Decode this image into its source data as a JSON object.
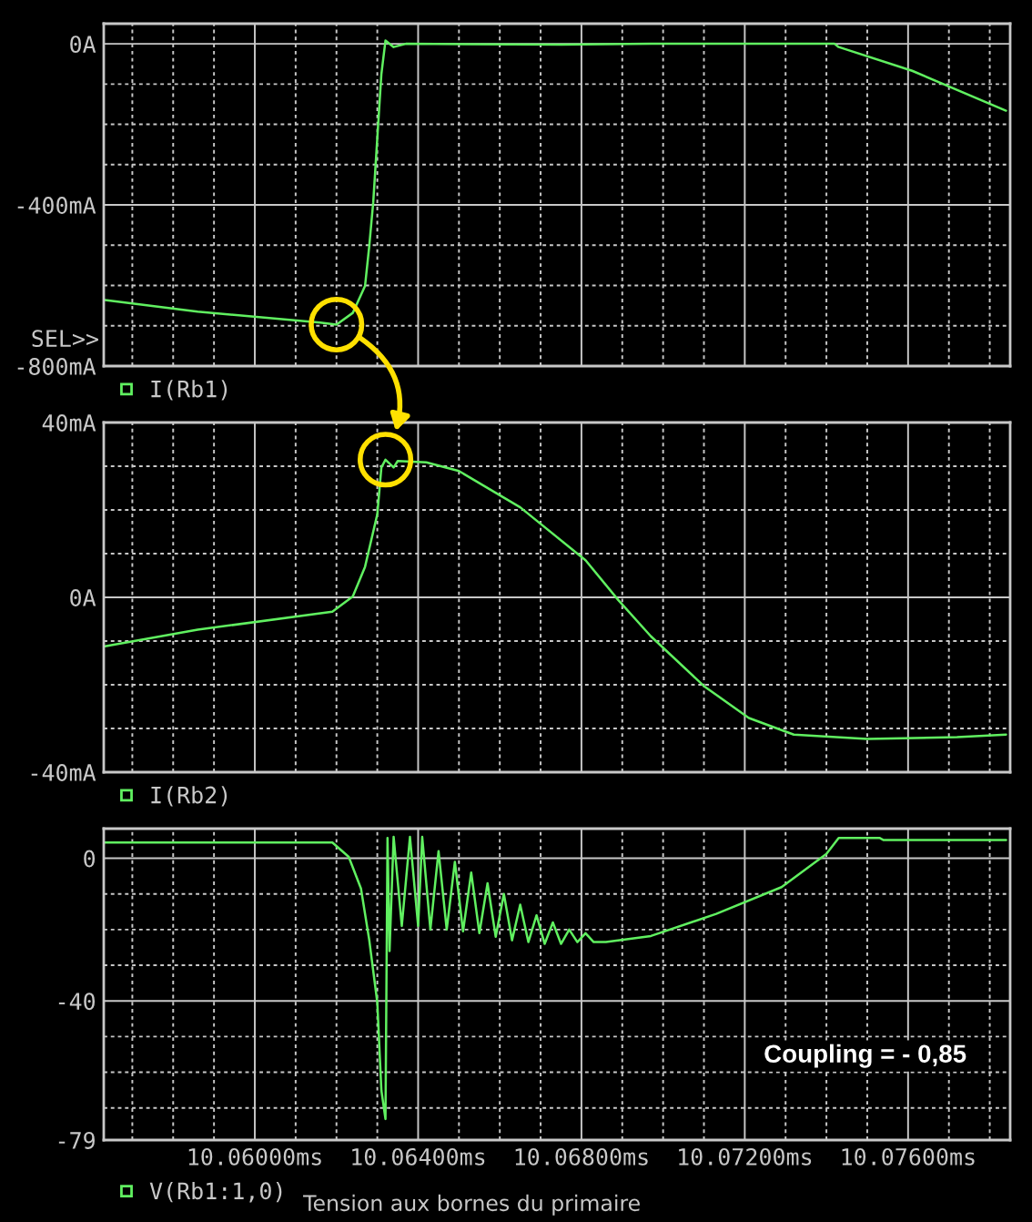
{
  "chart_data": [
    {
      "type": "line",
      "x": [
        10.05633,
        10.0586,
        10.0616,
        10.062,
        10.0624,
        10.0627,
        10.0628,
        10.0629,
        10.063,
        10.0631,
        10.0632,
        10.0634,
        10.0637,
        10.0675,
        10.0697,
        10.0742,
        10.0743,
        10.0761,
        10.0784
      ],
      "series": [
        {
          "name": "I(Rb1)",
          "color": "#60f060",
          "values": [
            -636,
            -665,
            -692,
            -697,
            -668,
            -601,
            -505,
            -394,
            -234,
            -75,
            8,
            -8,
            0,
            -2,
            0,
            0,
            -8,
            -67,
            -166
          ]
        }
      ],
      "xlim": [
        10.0563,
        10.0785
      ],
      "ylim": [
        -800,
        50
      ],
      "xticks": [
        {
          "value": 10.057,
          "label": null
        },
        {
          "value": 10.058,
          "label": null
        },
        {
          "value": 10.059,
          "label": null
        },
        10.06,
        {
          "value": 10.061,
          "label": null
        },
        {
          "value": 10.062,
          "label": null
        },
        {
          "value": 10.063,
          "label": null
        },
        10.064,
        {
          "value": 10.065,
          "label": null
        },
        {
          "value": 10.066,
          "label": null
        },
        {
          "value": 10.067,
          "label": null
        },
        10.068,
        {
          "value": 10.069,
          "label": null
        },
        {
          "value": 10.07,
          "label": null
        },
        {
          "value": 10.071,
          "label": null
        },
        10.072,
        {
          "value": 10.073,
          "label": null
        },
        {
          "value": 10.074,
          "label": null
        },
        {
          "value": 10.075,
          "label": null
        },
        10.076,
        {
          "value": 10.077,
          "label": null
        },
        {
          "value": 10.078,
          "label": null
        }
      ],
      "yticks": [
        {
          "value": 0,
          "label": "0A"
        },
        {
          "value": -100,
          "label": null
        },
        {
          "value": -200,
          "label": null
        },
        {
          "value": -300,
          "label": null
        },
        {
          "value": -400,
          "label": "-400mA"
        },
        {
          "value": -500,
          "label": null
        },
        {
          "value": -600,
          "label": null
        },
        {
          "value": -700,
          "label": null
        },
        {
          "value": -800,
          "label": "-800mA"
        }
      ],
      "tick_labels": "y",
      "grid": true,
      "legend": "bottom",
      "annotations": [
        "SEL>>"
      ]
    },
    {
      "type": "line",
      "x": [
        10.05633,
        10.0586,
        10.0619,
        10.0624,
        10.0627,
        10.063,
        10.0631,
        10.0632,
        10.0634,
        10.0635,
        10.0642,
        10.065,
        10.0665,
        10.0681,
        10.0689,
        10.0697,
        10.071,
        10.0721,
        10.0732,
        10.075,
        10.0772,
        10.0784
      ],
      "series": [
        {
          "name": "I(Rb2)",
          "color": "#60f060",
          "values": [
            -11.2,
            -7.4,
            -3.3,
            0.2,
            7,
            19,
            29.7,
            31.5,
            29.7,
            31.2,
            30.9,
            28.9,
            20.6,
            8.5,
            -0.6,
            -8.9,
            -20.3,
            -27.6,
            -31.4,
            -32.4,
            -32,
            -31.4
          ]
        }
      ],
      "xlim": [
        10.0563,
        10.0785
      ],
      "ylim": [
        -40,
        40
      ],
      "xticks": [
        {
          "value": 10.057,
          "label": null
        },
        {
          "value": 10.058,
          "label": null
        },
        {
          "value": 10.059,
          "label": null
        },
        10.06,
        {
          "value": 10.061,
          "label": null
        },
        {
          "value": 10.062,
          "label": null
        },
        {
          "value": 10.063,
          "label": null
        },
        10.064,
        {
          "value": 10.065,
          "label": null
        },
        {
          "value": 10.066,
          "label": null
        },
        {
          "value": 10.067,
          "label": null
        },
        10.068,
        {
          "value": 10.069,
          "label": null
        },
        {
          "value": 10.07,
          "label": null
        },
        {
          "value": 10.071,
          "label": null
        },
        10.072,
        {
          "value": 10.073,
          "label": null
        },
        {
          "value": 10.074,
          "label": null
        },
        {
          "value": 10.075,
          "label": null
        },
        10.076,
        {
          "value": 10.077,
          "label": null
        },
        {
          "value": 10.078,
          "label": null
        }
      ],
      "yticks": [
        {
          "value": 40,
          "label": "40mA"
        },
        {
          "value": 30,
          "label": null
        },
        {
          "value": 20,
          "label": null
        },
        {
          "value": 10,
          "label": null
        },
        {
          "value": 0,
          "label": "0A"
        },
        {
          "value": -10,
          "label": null
        },
        {
          "value": -20,
          "label": null
        },
        {
          "value": -30,
          "label": null
        },
        {
          "value": -40,
          "label": "-40mA"
        }
      ],
      "tick_labels": "y",
      "grid": true,
      "legend": "bottom"
    },
    {
      "type": "line",
      "x": [
        10.05633,
        10.0619,
        10.0623,
        10.0626,
        10.0628,
        10.063,
        10.0631,
        10.0632,
        10.06325,
        10.0633,
        10.0634,
        10.0636,
        10.0638,
        10.064,
        10.0641,
        10.0643,
        10.0645,
        10.0647,
        10.0649,
        10.0651,
        10.0653,
        10.0655,
        10.0657,
        10.0659,
        10.0661,
        10.0663,
        10.0665,
        10.0667,
        10.0669,
        10.0671,
        10.0673,
        10.0675,
        10.0677,
        10.0679,
        10.0681,
        10.0683,
        10.0686,
        10.0697,
        10.0713,
        10.0729,
        10.074,
        10.0743,
        10.0753,
        10.0754,
        10.0784
      ],
      "series": [
        {
          "name": "V(Rb1:1,0)",
          "color": "#60f060",
          "values": [
            4.4,
            4.4,
            0.4,
            -8.5,
            -22.7,
            -40.4,
            -65.1,
            -73.1,
            5.7,
            -26,
            6,
            -19,
            6,
            -19,
            6,
            -20,
            2,
            -20,
            -1,
            -20.5,
            -4,
            -21,
            -7,
            -22,
            -10,
            -23,
            -13,
            -23.5,
            -16,
            -24,
            -18,
            -24,
            -20,
            -23.5,
            -21,
            -23.5,
            -23.5,
            -21.8,
            -15.6,
            -8.1,
            1.2,
            5.7,
            5.7,
            5.1,
            5.1
          ]
        }
      ],
      "xlim": [
        10.0563,
        10.0785
      ],
      "ylim": [
        -79,
        8.3
      ],
      "xticks": [
        {
          "value": 10.057,
          "label": null
        },
        {
          "value": 10.058,
          "label": null
        },
        {
          "value": 10.059,
          "label": null
        },
        {
          "value": 10.06,
          "label": "10.06000ms"
        },
        {
          "value": 10.061,
          "label": null
        },
        {
          "value": 10.062,
          "label": null
        },
        {
          "value": 10.063,
          "label": null
        },
        {
          "value": 10.064,
          "label": "10.06400ms"
        },
        {
          "value": 10.065,
          "label": null
        },
        {
          "value": 10.066,
          "label": null
        },
        {
          "value": 10.067,
          "label": null
        },
        {
          "value": 10.068,
          "label": "10.06800ms"
        },
        {
          "value": 10.069,
          "label": null
        },
        {
          "value": 10.07,
          "label": null
        },
        {
          "value": 10.071,
          "label": null
        },
        {
          "value": 10.072,
          "label": "10.07200ms"
        },
        {
          "value": 10.073,
          "label": null
        },
        {
          "value": 10.074,
          "label": null
        },
        {
          "value": 10.075,
          "label": null
        },
        {
          "value": 10.076,
          "label": "10.07600ms"
        },
        {
          "value": 10.077,
          "label": null
        },
        {
          "value": 10.078,
          "label": null
        }
      ],
      "yticks": [
        0,
        {
          "value": -10,
          "label": null
        },
        {
          "value": -20,
          "label": null
        },
        {
          "value": -30,
          "label": null
        },
        -40,
        {
          "value": -50,
          "label": null
        },
        {
          "value": -60,
          "label": null
        },
        {
          "value": -70,
          "label": null
        },
        -79
      ],
      "grid": true,
      "legend": "bottom",
      "annotations": [
        "Coupling = - 0,85",
        "Tension aux bornes du primaire"
      ]
    }
  ]
}
